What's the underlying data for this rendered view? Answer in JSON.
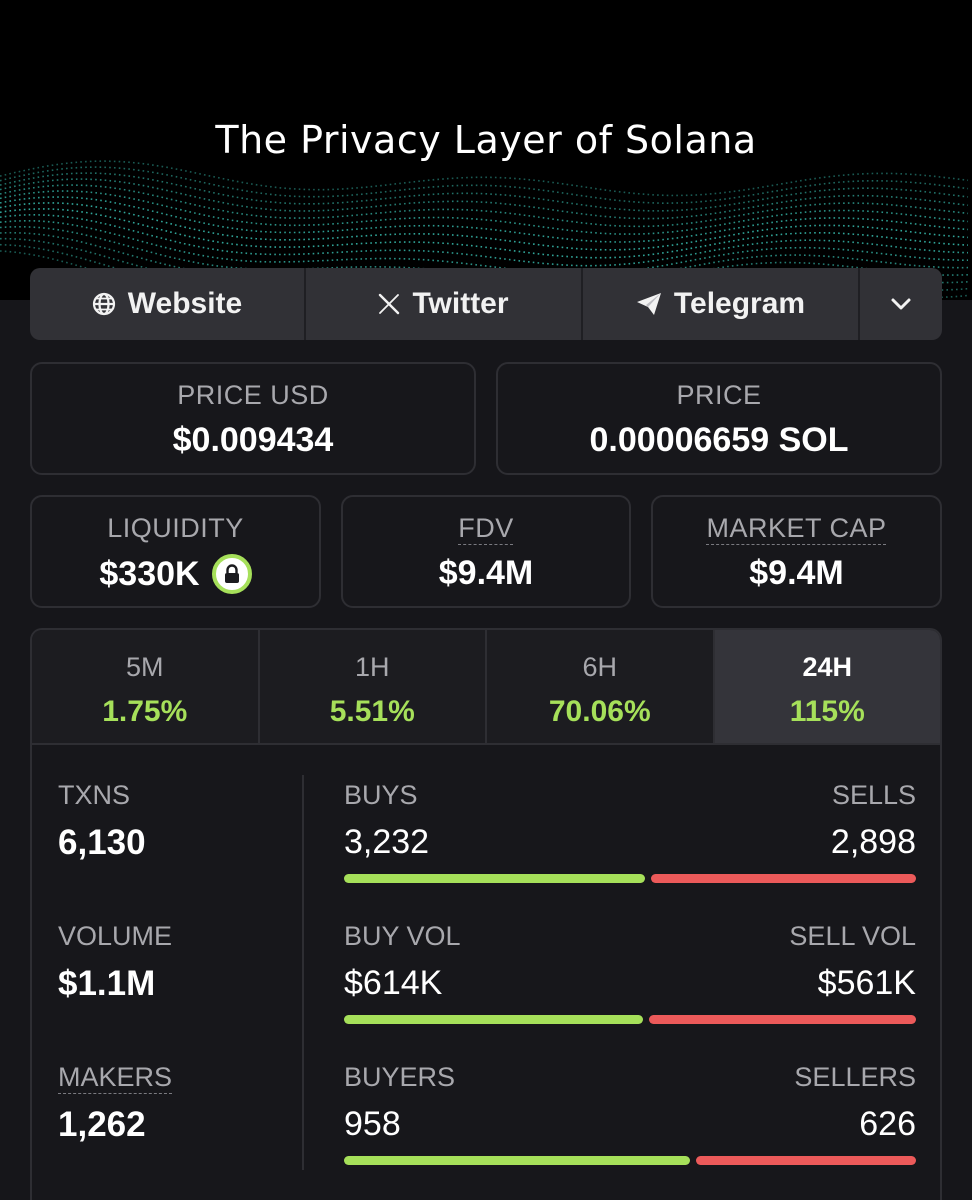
{
  "banner": {
    "title": "The Privacy Layer of Solana"
  },
  "links": {
    "website": "Website",
    "twitter": "Twitter",
    "telegram": "Telegram"
  },
  "price_usd": {
    "label": "PRICE USD",
    "value": "$0.009434"
  },
  "price_sol": {
    "label": "PRICE",
    "value": "0.00006659 SOL"
  },
  "liquidity": {
    "label": "LIQUIDITY",
    "value": "$330K"
  },
  "fdv": {
    "label": "FDV",
    "value": "$9.4M"
  },
  "market_cap": {
    "label": "MARKET CAP",
    "value": "$9.4M"
  },
  "tabs": [
    {
      "label": "5M",
      "change": "1.75%"
    },
    {
      "label": "1H",
      "change": "5.51%"
    },
    {
      "label": "6H",
      "change": "70.06%"
    },
    {
      "label": "24H",
      "change": "115%",
      "active": true
    }
  ],
  "stats": {
    "txns": {
      "label": "TXNS",
      "value": "6,130"
    },
    "volume": {
      "label": "VOLUME",
      "value": "$1.1M"
    },
    "makers": {
      "label": "MAKERS",
      "value": "1,262"
    },
    "buys": {
      "label": "BUYS",
      "value": "3,232",
      "sell_label": "SELLS",
      "sell_value": "2,898",
      "buy_share": 0.527
    },
    "vol": {
      "label": "BUY VOL",
      "value": "$614K",
      "sell_label": "SELL VOL",
      "sell_value": "$561K",
      "buy_share": 0.523
    },
    "buyers": {
      "label": "BUYERS",
      "value": "958",
      "sell_label": "SELLERS",
      "sell_value": "626",
      "buy_share": 0.605
    }
  },
  "colors": {
    "buy": "#a6e05a",
    "sell": "#ec5a5a",
    "lock_ring": "#a6e05a"
  },
  "icons": {
    "website": "globe-icon",
    "twitter": "x-logo-icon",
    "telegram": "paper-plane-icon",
    "more": "chevron-down-icon",
    "liquidity": "lock-icon"
  }
}
